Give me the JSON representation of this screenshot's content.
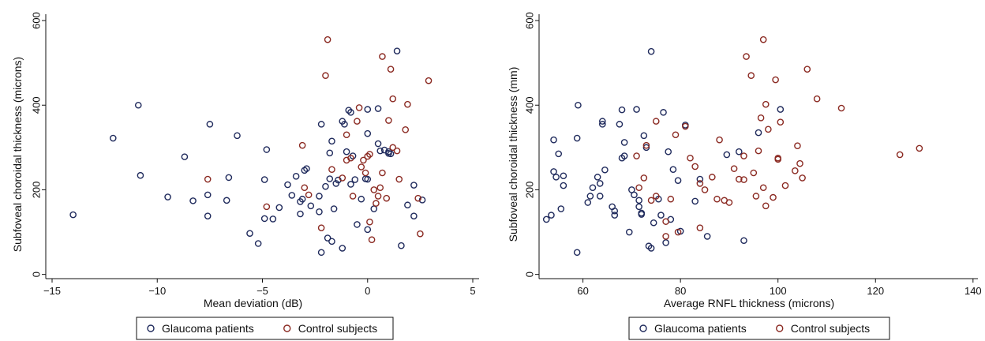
{
  "colors": {
    "glaucoma": "#1f2a5c",
    "control": "#8b2a22",
    "axis": "#111111"
  },
  "chart_data": [
    {
      "type": "scatter",
      "xlabel": "Mean deviation (dB)",
      "ylabel": "Subfoveal choroidal thickness (microns)",
      "xlim": [
        -15.3,
        5.3
      ],
      "ylim": [
        -10,
        615
      ],
      "xticks": [
        -15,
        -10,
        -5,
        0,
        5
      ],
      "xtick_labels": [
        "−15",
        "−10",
        "−5",
        "0",
        "5"
      ],
      "yticks": [
        0,
        200,
        400,
        600
      ],
      "ytick_labels": [
        "0",
        "200",
        "400",
        "600"
      ],
      "grid": false,
      "legend_position": "bottom",
      "series": [
        {
          "name": "Glaucoma patients",
          "marker": "hollow-circle",
          "color": "#1f2a5c",
          "points": [
            [
              -14.0,
              141
            ],
            [
              -12.1,
              322
            ],
            [
              -10.9,
              400
            ],
            [
              -10.8,
              234
            ],
            [
              -9.5,
              183
            ],
            [
              -8.7,
              278
            ],
            [
              -8.3,
              174
            ],
            [
              -7.6,
              188
            ],
            [
              -7.5,
              355
            ],
            [
              -7.6,
              138
            ],
            [
              -6.6,
              229
            ],
            [
              -6.7,
              175
            ],
            [
              -6.2,
              328
            ],
            [
              -5.6,
              97
            ],
            [
              -5.2,
              73
            ],
            [
              -4.9,
              224
            ],
            [
              -4.8,
              295
            ],
            [
              -4.9,
              132
            ],
            [
              -4.5,
              131
            ],
            [
              -4.2,
              158
            ],
            [
              -3.8,
              212
            ],
            [
              -3.6,
              187
            ],
            [
              -3.4,
              232
            ],
            [
              -3.2,
              172
            ],
            [
              -3.1,
              178
            ],
            [
              -3.0,
              246
            ],
            [
              -2.9,
              250
            ],
            [
              -3.2,
              143
            ],
            [
              -2.7,
              162
            ],
            [
              -2.3,
              185
            ],
            [
              -2.2,
              355
            ],
            [
              -2.0,
              208
            ],
            [
              -1.9,
              86
            ],
            [
              -1.7,
              78
            ],
            [
              -1.8,
              226
            ],
            [
              -1.6,
              155
            ],
            [
              -2.3,
              148
            ],
            [
              -2.2,
              52
            ],
            [
              -1.2,
              62
            ],
            [
              -1.8,
              287
            ],
            [
              -1.7,
              315
            ],
            [
              -1.4,
              223
            ],
            [
              -1.5,
              215
            ],
            [
              -1.2,
              362
            ],
            [
              -1.0,
              290
            ],
            [
              -1.1,
              355
            ],
            [
              -0.9,
              388
            ],
            [
              -0.8,
              383
            ],
            [
              -0.7,
              280
            ],
            [
              -0.6,
              224
            ],
            [
              -0.8,
              213
            ],
            [
              -0.3,
              178
            ],
            [
              -0.5,
              118
            ],
            [
              -0.1,
              226
            ],
            [
              0.0,
              225
            ],
            [
              0.0,
              106
            ],
            [
              0.0,
              333
            ],
            [
              0.0,
              390
            ],
            [
              0.3,
              155
            ],
            [
              0.5,
              309
            ],
            [
              0.6,
              292
            ],
            [
              1.0,
              290
            ],
            [
              1.1,
              285
            ],
            [
              1.0,
              286
            ],
            [
              0.8,
              294
            ],
            [
              1.4,
              528
            ],
            [
              1.6,
              68
            ],
            [
              1.9,
              164
            ],
            [
              2.2,
              138
            ],
            [
              2.2,
              211
            ],
            [
              2.6,
              176
            ],
            [
              0.5,
              392
            ]
          ]
        },
        {
          "name": "Control subjects",
          "marker": "hollow-circle",
          "color": "#8b2a22",
          "points": [
            [
              -7.6,
              225
            ],
            [
              -4.8,
              160
            ],
            [
              -3.1,
              305
            ],
            [
              -3.0,
              205
            ],
            [
              -2.8,
              188
            ],
            [
              -2.2,
              110
            ],
            [
              -2.0,
              470
            ],
            [
              -1.9,
              555
            ],
            [
              -1.7,
              248
            ],
            [
              -1.2,
              228
            ],
            [
              -1.0,
              330
            ],
            [
              -1.0,
              270
            ],
            [
              -0.8,
              275
            ],
            [
              -0.7,
              185
            ],
            [
              -0.5,
              362
            ],
            [
              -0.4,
              394
            ],
            [
              -0.3,
              254
            ],
            [
              -0.1,
              240
            ],
            [
              -0.2,
              270
            ],
            [
              0.0,
              279
            ],
            [
              0.1,
              284
            ],
            [
              0.1,
              124
            ],
            [
              0.2,
              82
            ],
            [
              0.3,
              200
            ],
            [
              0.4,
              168
            ],
            [
              0.5,
              185
            ],
            [
              0.6,
              205
            ],
            [
              0.7,
              240
            ],
            [
              0.7,
              515
            ],
            [
              0.9,
              180
            ],
            [
              1.0,
              364
            ],
            [
              1.1,
              485
            ],
            [
              1.2,
              415
            ],
            [
              1.2,
              300
            ],
            [
              1.4,
              292
            ],
            [
              1.5,
              225
            ],
            [
              1.8,
              342
            ],
            [
              1.9,
              402
            ],
            [
              2.4,
              180
            ],
            [
              2.5,
              96
            ],
            [
              2.9,
              458
            ]
          ]
        }
      ]
    },
    {
      "type": "scatter",
      "xlabel": "Average RNFL thickness (microns)",
      "ylabel": "Subfoveal choroidal thickness (mm)",
      "xlim": [
        51,
        141
      ],
      "ylim": [
        -10,
        615
      ],
      "xticks": [
        60,
        80,
        100,
        120,
        140
      ],
      "xtick_labels": [
        "60",
        "80",
        "100",
        "120",
        "140"
      ],
      "yticks": [
        0,
        200,
        400,
        600
      ],
      "ytick_labels": [
        "0",
        "200",
        "400",
        "600"
      ],
      "grid": false,
      "legend_position": "bottom",
      "series": [
        {
          "name": "Glaucoma patients",
          "marker": "hollow-circle",
          "color": "#1f2a5c",
          "points": [
            [
              52.5,
              130
            ],
            [
              53.5,
              140
            ],
            [
              54.0,
              318
            ],
            [
              54.0,
              243
            ],
            [
              55.0,
              285
            ],
            [
              54.5,
              230
            ],
            [
              56.0,
              233
            ],
            [
              55.5,
              155
            ],
            [
              56.0,
              210
            ],
            [
              58.8,
              52
            ],
            [
              59.0,
              400
            ],
            [
              58.8,
              322
            ],
            [
              61.0,
              170
            ],
            [
              61.5,
              185
            ],
            [
              62.0,
              205
            ],
            [
              63.0,
              230
            ],
            [
              63.5,
              215
            ],
            [
              63.5,
              185
            ],
            [
              64.0,
              362
            ],
            [
              64.0,
              355
            ],
            [
              64.5,
              247
            ],
            [
              66.0,
              160
            ],
            [
              66.5,
              150
            ],
            [
              66.5,
              140
            ],
            [
              67.5,
              355
            ],
            [
              68.0,
              389
            ],
            [
              68.0,
              275
            ],
            [
              68.5,
              280
            ],
            [
              68.5,
              312
            ],
            [
              69.5,
              100
            ],
            [
              70.0,
              200
            ],
            [
              70.5,
              188
            ],
            [
              71.0,
              390
            ],
            [
              71.5,
              175
            ],
            [
              71.5,
              160
            ],
            [
              72.0,
              145
            ],
            [
              72.0,
              142
            ],
            [
              72.5,
              328
            ],
            [
              73.0,
              300
            ],
            [
              73.5,
              67
            ],
            [
              74.0,
              62
            ],
            [
              74.0,
              527
            ],
            [
              74.5,
              122
            ],
            [
              75.5,
              178
            ],
            [
              76.0,
              140
            ],
            [
              76.5,
              383
            ],
            [
              77.0,
              75
            ],
            [
              77.5,
              290
            ],
            [
              78.0,
              130
            ],
            [
              78.5,
              248
            ],
            [
              79.5,
              222
            ],
            [
              80.0,
              102
            ],
            [
              81.0,
              353
            ],
            [
              83.0,
              173
            ],
            [
              84.0,
              225
            ],
            [
              85.5,
              90
            ],
            [
              89.5,
              283
            ],
            [
              92.0,
              290
            ],
            [
              93.0,
              80
            ],
            [
              96.0,
              335
            ],
            [
              100.5,
              390
            ]
          ]
        },
        {
          "name": "Control subjects",
          "marker": "hollow-circle",
          "color": "#8b2a22",
          "points": [
            [
              71.0,
              280
            ],
            [
              71.5,
              205
            ],
            [
              72.5,
              228
            ],
            [
              73.0,
              305
            ],
            [
              74.0,
              175
            ],
            [
              75.0,
              185
            ],
            [
              75.0,
              362
            ],
            [
              77.0,
              90
            ],
            [
              77.0,
              125
            ],
            [
              78.0,
              178
            ],
            [
              79.0,
              330
            ],
            [
              79.5,
              100
            ],
            [
              81.0,
              350
            ],
            [
              82.0,
              275
            ],
            [
              83.0,
              255
            ],
            [
              84.0,
              110
            ],
            [
              84.0,
              215
            ],
            [
              85.0,
              200
            ],
            [
              86.5,
              230
            ],
            [
              87.5,
              178
            ],
            [
              88.0,
              318
            ],
            [
              89.0,
              175
            ],
            [
              90.0,
              170
            ],
            [
              91.0,
              250
            ],
            [
              92.0,
              225
            ],
            [
              93.0,
              280
            ],
            [
              93.0,
              224
            ],
            [
              93.5,
              515
            ],
            [
              94.5,
              470
            ],
            [
              95.0,
              240
            ],
            [
              95.5,
              185
            ],
            [
              96.0,
              292
            ],
            [
              96.5,
              370
            ],
            [
              97.0,
              555
            ],
            [
              97.5,
              402
            ],
            [
              97.0,
              205
            ],
            [
              97.5,
              162
            ],
            [
              98.0,
              343
            ],
            [
              99.0,
              182
            ],
            [
              99.5,
              460
            ],
            [
              100.0,
              275
            ],
            [
              100.0,
              272
            ],
            [
              100.5,
              360
            ],
            [
              101.5,
              210
            ],
            [
              103.5,
              245
            ],
            [
              104.0,
              304
            ],
            [
              105.0,
              228
            ],
            [
              104.5,
              262
            ],
            [
              106.0,
              485
            ],
            [
              108.0,
              415
            ],
            [
              113.0,
              393
            ],
            [
              125.0,
              283
            ],
            [
              129.0,
              298
            ]
          ]
        }
      ]
    }
  ]
}
